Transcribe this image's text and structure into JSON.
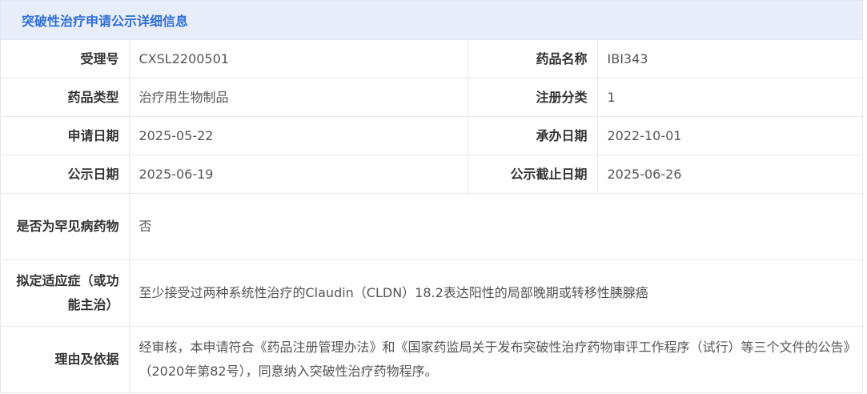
{
  "title": "突破性治疗申请公示详细信息",
  "pairs": [
    {
      "label": "受理号",
      "value": "CXSL2200501",
      "label2": "药品名称",
      "value2": "IBI343"
    },
    {
      "label": "药品类型",
      "value": "治疗用生物制品",
      "label2": "注册分类",
      "value2": "1"
    },
    {
      "label": "申请日期",
      "value": "2025-05-22",
      "label2": "承办日期",
      "value2": "2022-10-01"
    },
    {
      "label": "公示日期",
      "value": "2025-06-19",
      "label2": "公示截止日期",
      "value2": "2025-06-26"
    }
  ],
  "rows": [
    {
      "label": "是否为罕见病药物",
      "value": "否"
    },
    {
      "label": "拟定适应症（或功能主治）",
      "value": "至少接受过两种系统性治疗的Claudin（CLDN）18.2表达阳性的局部晚期或转移性胰腺癌"
    },
    {
      "label": "理由及依据",
      "value": "经审核，本申请符合《药品注册管理办法》和《国家药监局关于发布突破性治疗药物审评工作程序（试行）等三个文件的公告》（2020年第82号），同意纳入突破性治疗药物程序。"
    }
  ]
}
